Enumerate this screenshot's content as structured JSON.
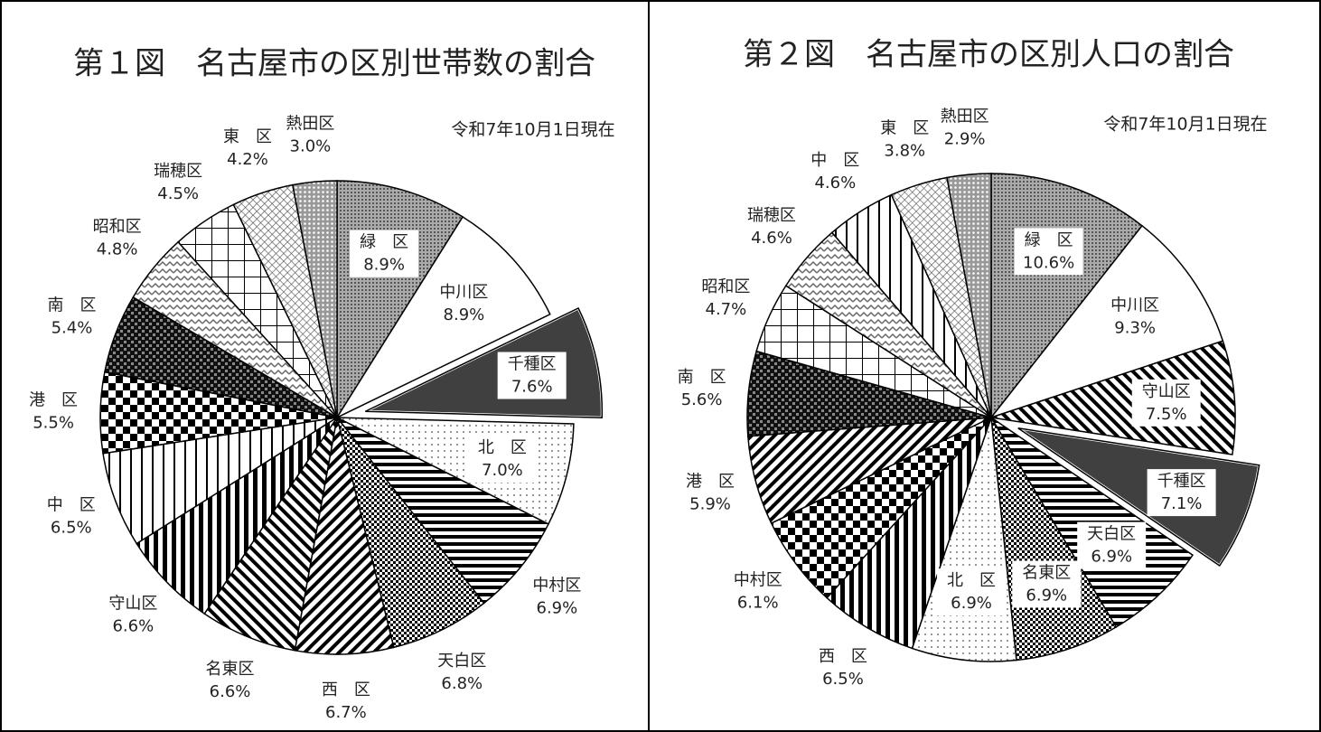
{
  "chart_data": [
    {
      "type": "pie",
      "title": "第１図　名古屋市の区別世帯数の割合",
      "subtitle": "令和7年10月1日現在",
      "categories": [
        "緑　区",
        "中川区",
        "千種区",
        "北　区",
        "中村区",
        "天白区",
        "西　区",
        "名東区",
        "守山区",
        "中　区",
        "港　区",
        "南　区",
        "昭和区",
        "瑞穂区",
        "東　区",
        "熱田区"
      ],
      "values": [
        8.9,
        8.9,
        7.6,
        7.0,
        6.9,
        6.8,
        6.7,
        6.6,
        6.6,
        6.5,
        5.5,
        5.4,
        4.8,
        4.5,
        4.2,
        3.0
      ],
      "value_labels": [
        "8.9%",
        "8.9%",
        "7.6%",
        "7.0%",
        "6.9%",
        "6.8%",
        "6.7%",
        "6.6%",
        "6.6%",
        "6.5%",
        "5.5%",
        "5.4%",
        "4.8%",
        "4.5%",
        "4.2%",
        "3.0%"
      ],
      "fills": [
        "dots",
        "white",
        "dark",
        "fine",
        "hstripe",
        "checksmall",
        "diag",
        "diag2",
        "vbold",
        "vthin",
        "checker",
        "darkcheck",
        "wave",
        "grid",
        "diamond",
        "dots2"
      ],
      "explode": 2
    },
    {
      "type": "pie",
      "title": "第２図　名古屋市の区別人口の割合",
      "subtitle": "令和7年10月1日現在",
      "categories": [
        "緑　区",
        "中川区",
        "守山区",
        "千種区",
        "天白区",
        "名東区",
        "北　区",
        "西　区",
        "中村区",
        "港　区",
        "南　区",
        "昭和区",
        "瑞穂区",
        "中　区",
        "東　区",
        "熱田区"
      ],
      "values": [
        10.6,
        9.3,
        7.5,
        7.1,
        6.9,
        6.9,
        6.9,
        6.5,
        6.1,
        5.9,
        5.6,
        4.7,
        4.6,
        4.6,
        3.8,
        2.9
      ],
      "value_labels": [
        "10.6%",
        "9.3%",
        "7.5%",
        "7.1%",
        "6.9%",
        "6.9%",
        "6.9%",
        "6.5%",
        "6.1%",
        "5.9%",
        "5.6%",
        "4.7%",
        "4.6%",
        "4.6%",
        "3.8%",
        "2.9%"
      ],
      "fills": [
        "dots",
        "white",
        "diag2",
        "dark",
        "hstripe",
        "checksmall",
        "fine",
        "vbold",
        "checker",
        "diag",
        "darkcheck",
        "grid",
        "wave",
        "vthin",
        "diamond",
        "dots2"
      ],
      "explode": 3
    }
  ]
}
